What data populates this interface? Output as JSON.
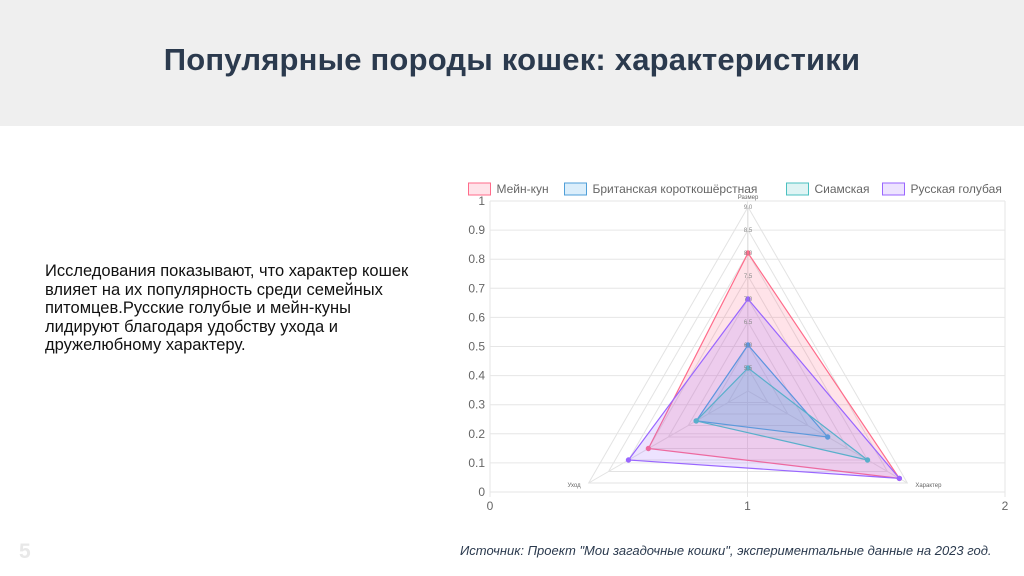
{
  "slide": {
    "title": "Популярные породы кошек: характеристики",
    "body": "Исследования показывают, что характер кошек влияет на их популярность среди семейных питомцев.Русские голубые и мейн-куны лидируют благодаря удобству ухода и дружелюбному характеру.",
    "source": "Источник: Проект \"Мои загадочные кошки\", экспериментальные данные на 2023 год.",
    "page_number": "5"
  },
  "chart_data": {
    "type": "radar",
    "axes": [
      "Размер",
      "Характер",
      "Уход"
    ],
    "radial_ticks": [
      "5.5",
      "6.0",
      "6.5",
      "7.0",
      "7.5",
      "8.0",
      "8.5",
      "9.0"
    ],
    "radial_range": [
      5,
      9
    ],
    "legend_position": "top",
    "series": [
      {
        "name": "Мейн-кун",
        "values": [
          8.0,
          8.8,
          7.5
        ],
        "color": "#ff6b8a",
        "fill": "rgba(255,99,132,0.18)"
      },
      {
        "name": "Британская короткошёрстная",
        "values": [
          6.0,
          7.0,
          6.3
        ],
        "color": "#4f9fd8",
        "fill": "rgba(54,162,235,0.18)"
      },
      {
        "name": "Сиамская",
        "values": [
          5.5,
          8.0,
          6.3
        ],
        "color": "#4bc0c0",
        "fill": "rgba(75,192,192,0.18)"
      },
      {
        "name": "Русская голубая",
        "values": [
          7.0,
          8.8,
          8.0
        ],
        "color": "#9966ff",
        "fill": "rgba(153,102,255,0.18)"
      }
    ],
    "background_axes": {
      "x_ticks": [
        "0",
        "1",
        "2"
      ],
      "y_ticks": [
        "0",
        "0.1",
        "0.2",
        "0.3",
        "0.4",
        "0.5",
        "0.6",
        "0.7",
        "0.8",
        "0.9",
        "1"
      ]
    }
  }
}
